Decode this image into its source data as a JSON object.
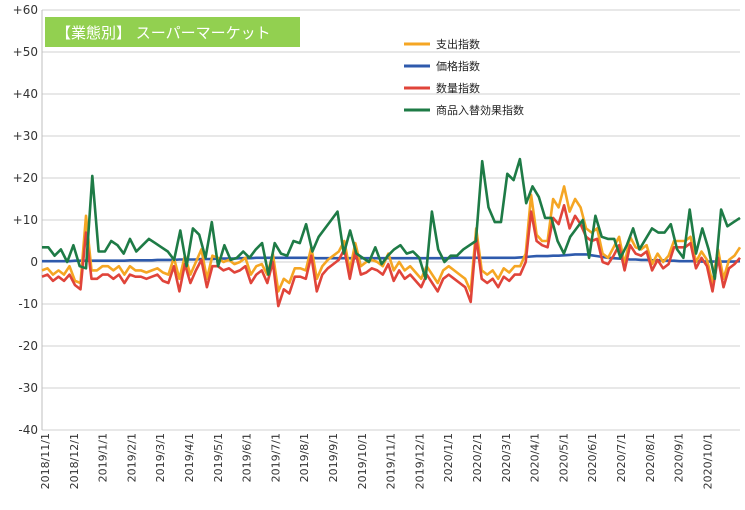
{
  "chart_data": {
    "type": "line",
    "title": "【業態別】 スーパーマーケット",
    "title_bg_color": "#92D050",
    "xlabel": "",
    "ylabel": "",
    "ylim": [
      -40,
      60
    ],
    "yticks": [
      "+60",
      "+50",
      "+40",
      "+30",
      "+20",
      "+10",
      "0",
      "-10",
      "-20",
      "-30",
      "-40"
    ],
    "x_tick_labels": [
      "2018/11/1",
      "2018/12/1",
      "2019/1/1",
      "2019/2/1",
      "2019/3/1",
      "2019/4/1",
      "2019/5/1",
      "2019/6/1",
      "2019/7/1",
      "2019/8/1",
      "2019/9/1",
      "2019/10/1",
      "2019/11/1",
      "2019/12/1",
      "2020/1/1",
      "2020/2/1",
      "2020/3/1",
      "2020/4/1",
      "2020/5/1",
      "2020/6/1",
      "2020/7/1",
      "2020/8/1",
      "2020/9/1",
      "2020/10/1"
    ],
    "grid": true,
    "legend_position": "top-right",
    "series": [
      {
        "name": "支出指数",
        "color": "#F5A623",
        "values": [
          -2,
          -1.5,
          -3,
          -2,
          -3,
          -1,
          -4.5,
          -5,
          11,
          -2,
          -2,
          -1,
          -1,
          -2,
          -1,
          -3,
          -1,
          -2,
          -2,
          -2.5,
          -2,
          -1.5,
          -2.5,
          -3,
          1,
          -4,
          1.5,
          -3,
          0,
          3,
          -4,
          1.5,
          1,
          0,
          0.5,
          -0.5,
          0,
          1,
          -3,
          -1,
          -0.5,
          -3,
          2,
          -7,
          -4,
          -5,
          -1.5,
          -1.5,
          -2,
          3.5,
          -4,
          -1,
          0.5,
          1.5,
          2.5,
          5,
          -2,
          4.5,
          -1,
          0,
          0.5,
          0,
          -1,
          2,
          -2,
          0,
          -2,
          -1,
          -2.5,
          -4,
          -1,
          -3,
          -5,
          -2,
          -1,
          -2,
          -3,
          -4,
          -7,
          8,
          -2,
          -3,
          -2,
          -4,
          -1.5,
          -2.5,
          -1,
          -1,
          2,
          16,
          6.5,
          5,
          5,
          15,
          13,
          18,
          12,
          15,
          13,
          8,
          7,
          8,
          2,
          1,
          3.5,
          6,
          -0.5,
          6,
          3.5,
          3,
          4,
          -0.5,
          2,
          0,
          1.5,
          5,
          5,
          5,
          6,
          0,
          2.5,
          0.5,
          -5,
          3,
          -4,
          0.5,
          1.5,
          3.5
        ]
      },
      {
        "name": "価格指数",
        "color": "#2E5AAC",
        "values": [
          0.2,
          0.2,
          0.2,
          0.2,
          0.2,
          0.2,
          0.3,
          0.3,
          0.3,
          0.3,
          0.3,
          0.3,
          0.3,
          0.3,
          0.3,
          0.3,
          0.4,
          0.4,
          0.4,
          0.4,
          0.4,
          0.5,
          0.5,
          0.5,
          0.5,
          0.6,
          0.6,
          0.6,
          0.6,
          0.7,
          0.7,
          0.7,
          0.8,
          0.8,
          0.8,
          0.8,
          0.9,
          0.9,
          0.9,
          1,
          1,
          1,
          1,
          1,
          1,
          1,
          1,
          1,
          1,
          1,
          0.9,
          0.9,
          0.9,
          0.9,
          0.9,
          0.9,
          0.9,
          0.9,
          0.9,
          0.9,
          0.9,
          0.9,
          0.9,
          0.9,
          0.9,
          0.9,
          0.9,
          0.9,
          0.9,
          0.9,
          0.9,
          0.9,
          0.9,
          0.9,
          0.9,
          1,
          1,
          1,
          1,
          1,
          1,
          1,
          1,
          1,
          1,
          1,
          1,
          1.1,
          1.2,
          1.3,
          1.4,
          1.4,
          1.4,
          1.5,
          1.5,
          1.6,
          1.7,
          1.8,
          1.8,
          1.8,
          1.6,
          1.4,
          1.2,
          1,
          0.9,
          0.8,
          0.7,
          0.6,
          0.6,
          0.5,
          0.5,
          0.4,
          0.4,
          0.4,
          0.3,
          0.3,
          0.2,
          0.2,
          0.2,
          0.2,
          0.1,
          0.1,
          0.1,
          0.1,
          0.1,
          0.1,
          0.1,
          0.2
        ]
      },
      {
        "name": "数量指数",
        "color": "#E0443A",
        "values": [
          -3.5,
          -3,
          -4.5,
          -3.5,
          -4.5,
          -3,
          -5.5,
          -6.5,
          7,
          -4,
          -4,
          -3,
          -3,
          -4,
          -3,
          -5,
          -3,
          -3.5,
          -3.5,
          -4,
          -3.5,
          -3,
          -4.5,
          -5,
          -1,
          -7,
          -0.5,
          -5,
          -2,
          0.5,
          -6,
          -1,
          -1,
          -2,
          -1.5,
          -2.5,
          -2,
          -1,
          -5,
          -3,
          -2,
          -5,
          0,
          -10.5,
          -6.5,
          -7.5,
          -3.5,
          -3.5,
          -4,
          1.5,
          -7,
          -3,
          -1.5,
          -0.5,
          0.5,
          3,
          -4,
          2.5,
          -3,
          -2.5,
          -1.5,
          -2,
          -3,
          -0.5,
          -4.5,
          -2,
          -4,
          -3,
          -4.5,
          -6,
          -3,
          -5,
          -7,
          -4,
          -3,
          -4,
          -5,
          -6,
          -9.5,
          6,
          -4,
          -5,
          -4,
          -6,
          -3.5,
          -4.5,
          -3,
          -3,
          0,
          12,
          5,
          4,
          3.5,
          10.5,
          9,
          13.5,
          8,
          11,
          9,
          6,
          5,
          5.5,
          0,
          -0.5,
          1.5,
          4,
          -2,
          4,
          2,
          1.5,
          2.5,
          -2,
          0.5,
          -1.5,
          -0.5,
          3.5,
          3.5,
          3.5,
          4.5,
          -1.5,
          1,
          -1,
          -7,
          1,
          -6,
          -1.5,
          -0.5,
          1
        ]
      },
      {
        "name": "商品入替効果指数",
        "color": "#1E7B46",
        "values": [
          3.5,
          3.5,
          1.5,
          3,
          0,
          4,
          -1,
          -1.5,
          20.5,
          2.5,
          2.5,
          5,
          4,
          2,
          5.5,
          2.5,
          4,
          5.5,
          4.5,
          3.5,
          2.5,
          0.5,
          7.5,
          -1,
          8,
          6.5,
          1,
          9.5,
          -1,
          4,
          0.5,
          1,
          2.5,
          1,
          3,
          4.5,
          -3,
          4.5,
          2,
          1.5,
          5,
          4.5,
          9,
          2.5,
          6,
          8,
          10,
          12,
          2,
          7.5,
          2,
          1,
          0,
          3.5,
          -0.5,
          1.5,
          3,
          4,
          2,
          2.5,
          1,
          -4,
          12,
          3,
          0,
          1.5,
          1.5,
          3,
          4,
          5,
          24,
          13,
          9.5,
          9.5,
          21,
          19.5,
          24.5,
          14,
          18,
          15.5,
          10.5,
          10.5,
          5,
          2,
          6,
          8,
          10,
          1,
          11,
          6,
          5.5,
          5.5,
          1,
          4,
          8,
          3,
          5.5,
          8,
          7,
          7,
          9,
          3,
          1,
          12.5,
          2,
          8,
          3,
          -4,
          12.5,
          8.5,
          9.5,
          10.5
        ]
      }
    ]
  }
}
